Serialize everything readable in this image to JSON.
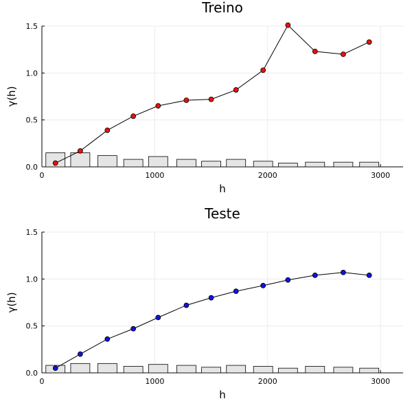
{
  "chart_data": [
    {
      "type": "line",
      "title": "Treino",
      "xlabel": "h",
      "ylabel": "γ(h)",
      "xlim": [
        0,
        3200
      ],
      "ylim": [
        0,
        1.5
      ],
      "xticks": [
        0,
        1000,
        2000,
        3000
      ],
      "yticks": [
        0.0,
        0.5,
        1.0,
        1.5
      ],
      "ytick_labels": [
        "0.0",
        "0.5",
        "1.0",
        "1.5"
      ],
      "grid": true,
      "marker_color": "#e8120c",
      "bar_color": "#e5e5e5",
      "series": [
        {
          "type": "line",
          "x": [
            120,
            340,
            580,
            810,
            1030,
            1280,
            1500,
            1720,
            1960,
            2180,
            2420,
            2670,
            2900
          ],
          "values": [
            0.04,
            0.17,
            0.39,
            0.54,
            0.65,
            0.71,
            0.72,
            0.82,
            1.03,
            1.51,
            1.23,
            1.2,
            1.33
          ]
        },
        {
          "type": "bar",
          "x": [
            120,
            340,
            580,
            810,
            1030,
            1280,
            1500,
            1720,
            1960,
            2180,
            2420,
            2670,
            2900
          ],
          "values": [
            0.15,
            0.15,
            0.12,
            0.08,
            0.11,
            0.08,
            0.06,
            0.08,
            0.06,
            0.04,
            0.05,
            0.05,
            0.05
          ]
        }
      ]
    },
    {
      "type": "line",
      "title": "Teste",
      "xlabel": "h",
      "ylabel": "γ(h)",
      "xlim": [
        0,
        3200
      ],
      "ylim": [
        0,
        1.5
      ],
      "xticks": [
        0,
        1000,
        2000,
        3000
      ],
      "yticks": [
        0.0,
        0.5,
        1.0,
        1.5
      ],
      "ytick_labels": [
        "0.0",
        "0.5",
        "1.0",
        "1.5"
      ],
      "grid": true,
      "marker_color": "#1313d9",
      "bar_color": "#e5e5e5",
      "series": [
        {
          "type": "line",
          "x": [
            120,
            340,
            580,
            810,
            1030,
            1280,
            1500,
            1720,
            1960,
            2180,
            2420,
            2670,
            2900
          ],
          "values": [
            0.05,
            0.2,
            0.36,
            0.47,
            0.59,
            0.72,
            0.8,
            0.87,
            0.93,
            0.99,
            1.04,
            1.07,
            1.04
          ]
        },
        {
          "type": "bar",
          "x": [
            120,
            340,
            580,
            810,
            1030,
            1280,
            1500,
            1720,
            1960,
            2180,
            2420,
            2670,
            2900
          ],
          "values": [
            0.08,
            0.1,
            0.1,
            0.07,
            0.09,
            0.08,
            0.06,
            0.08,
            0.07,
            0.05,
            0.07,
            0.06,
            0.05
          ]
        }
      ]
    }
  ]
}
